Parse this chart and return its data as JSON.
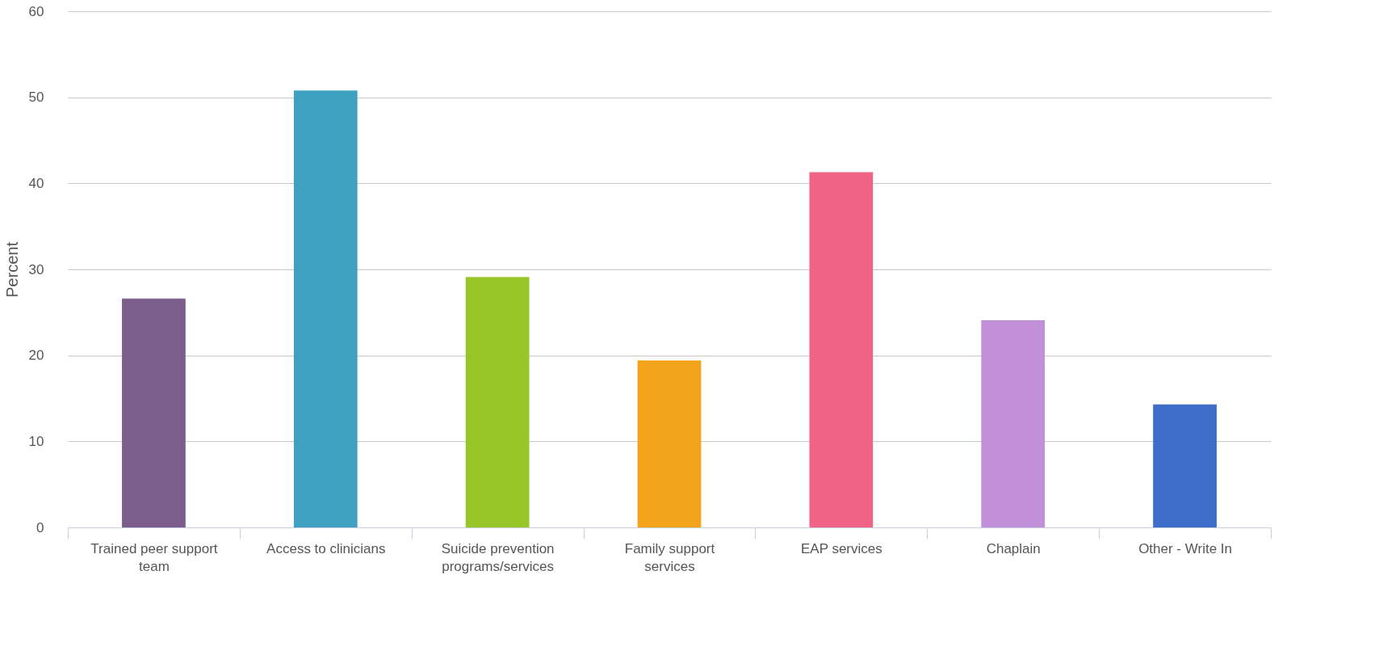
{
  "chart_data": {
    "type": "bar",
    "ylabel": "Percent",
    "categories": [
      "Trained peer support team",
      "Access to clinicians",
      "Suicide prevention programs/services",
      "Family support services",
      "EAP services",
      "Chaplain",
      "Other - Write In"
    ],
    "values": [
      26.6,
      50.8,
      29.1,
      19.4,
      41.3,
      24.1,
      14.3
    ],
    "colors": [
      "#7b5e8c",
      "#3fa1c0",
      "#97c626",
      "#f4a41b",
      "#f06384",
      "#c190d8",
      "#3d6cc9"
    ],
    "ylim": [
      0,
      60
    ],
    "yticks": [
      0,
      10,
      20,
      30,
      40,
      50,
      60
    ],
    "grid": "y"
  }
}
